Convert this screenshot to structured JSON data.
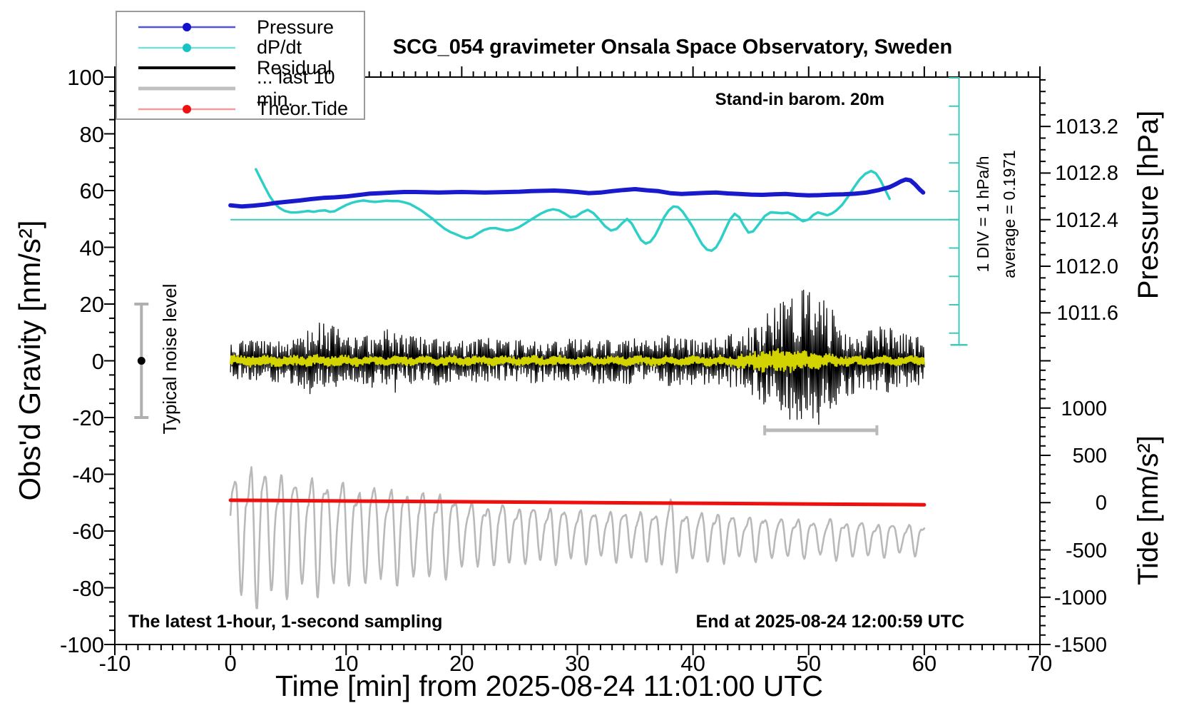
{
  "title": "SCG_054 gravimeter Onsala Space Observatory, Sweden",
  "annotations": {
    "barometer": "Stand-in barom. 20m",
    "div_scale": "1 DIV = 1 hPa/h",
    "average": "average = 0.1971",
    "noise": "Typical noise level",
    "sampling": "The latest 1-hour, 1-second sampling",
    "end_time": "End at 2025-08-24 12:00:59 UTC"
  },
  "legend": {
    "items": [
      {
        "label": "Pressure",
        "line_color": "#5353de",
        "line_width": 2.5,
        "dot": "#1212cc"
      },
      {
        "label": "dP/dt",
        "line_color": "#7adcdc",
        "line_width": 2.5,
        "dot": "#17c3c3"
      },
      {
        "label": "Residual",
        "line_color": "#000000",
        "line_width": 4,
        "dot": null
      },
      {
        "label": "... last 10 min.",
        "line_color": "#c0c0c0",
        "line_width": 5,
        "dot": null
      },
      {
        "label": "Theor.Tide",
        "line_color": "#f29999",
        "line_width": 2.5,
        "dot": "#ee1111"
      }
    ]
  },
  "chart_data": {
    "type": "line",
    "title": "SCG_054 gravimeter Onsala Space Observatory, Sweden",
    "axes": {
      "x": {
        "title": "Time [min] from 2025-08-24 11:01:00 UTC",
        "min": -10,
        "max": 70,
        "major_ticks": [
          -10,
          0,
          10,
          20,
          30,
          40,
          50,
          60,
          70
        ],
        "minor_step": 1
      },
      "y_left": {
        "title": "Obs'd Gravity [nm/s²]",
        "min": -100,
        "max": 100,
        "major_step": 20,
        "minor_step": 5,
        "major_ticks": [
          -100,
          -80,
          -60,
          -40,
          -20,
          0,
          20,
          40,
          60,
          80,
          100
        ]
      },
      "y_pressure": {
        "title": "Pressure [hPa]",
        "major_values": [
          1013.2,
          1012.8,
          1012.4,
          1012.0,
          1011.6
        ],
        "major_labels": [
          "1013.2",
          "1012.8",
          "1012.4",
          "1012.0",
          "1011.6"
        ],
        "minor_step": 0.1,
        "minor_range": [
          1011.3,
          1013.6
        ],
        "ref_value": 1012.4,
        "ref_gravity_units": 49.75,
        "units_per_hpa": 41.06
      },
      "y_tide": {
        "title": "Tide [nm/s²]",
        "major_values": [
          1000,
          500,
          0,
          -500,
          -1000,
          -1500
        ],
        "major_labels": [
          "1000",
          "500",
          "0",
          "-500",
          "-1000",
          "-1500"
        ],
        "minor_step": 100,
        "minor_range": [
          -1500,
          1500
        ],
        "tide_per_gravity_unit": 30,
        "zero_at_gravity_units": -50
      }
    },
    "series": {
      "pressure": {
        "name": "Pressure",
        "color": "#1a1acd",
        "width": 6,
        "units": "left-axis nm/s2 (1 hPa = 41.06 units, 1012.4 hPa = 49.75)",
        "points": [
          [
            0,
            54.8
          ],
          [
            1,
            54.4
          ],
          [
            2,
            54.7
          ],
          [
            3,
            55.1
          ],
          [
            4,
            55.7
          ],
          [
            5,
            56.1
          ],
          [
            6,
            56.5
          ],
          [
            7,
            57.0
          ],
          [
            8,
            57.4
          ],
          [
            9,
            57.6
          ],
          [
            10,
            57.9
          ],
          [
            11,
            58.4
          ],
          [
            12,
            58.9
          ],
          [
            13,
            59.1
          ],
          [
            14,
            59.3
          ],
          [
            15,
            59.5
          ],
          [
            16,
            59.5
          ],
          [
            17,
            59.4
          ],
          [
            18,
            59.3
          ],
          [
            19,
            59.4
          ],
          [
            20,
            59.5
          ],
          [
            21,
            59.4
          ],
          [
            22,
            59.3
          ],
          [
            23,
            59.4
          ],
          [
            24,
            59.5
          ],
          [
            25,
            59.6
          ],
          [
            26,
            59.8
          ],
          [
            27,
            59.9
          ],
          [
            28,
            60.0
          ],
          [
            29,
            59.8
          ],
          [
            30,
            59.5
          ],
          [
            31,
            59.1
          ],
          [
            32,
            59.3
          ],
          [
            33,
            59.8
          ],
          [
            34,
            60.2
          ],
          [
            35,
            60.5
          ],
          [
            36,
            60.1
          ],
          [
            37,
            59.8
          ],
          [
            38,
            59.1
          ],
          [
            39,
            58.8
          ],
          [
            40,
            59.0
          ],
          [
            41,
            59.2
          ],
          [
            42,
            59.3
          ],
          [
            43,
            59.0
          ],
          [
            44,
            58.8
          ],
          [
            45,
            58.6
          ],
          [
            46,
            58.5
          ],
          [
            47,
            58.7
          ],
          [
            48,
            58.8
          ],
          [
            49,
            58.5
          ],
          [
            50,
            58.3
          ],
          [
            51,
            58.4
          ],
          [
            52,
            58.6
          ],
          [
            53,
            58.7
          ],
          [
            54,
            58.9
          ],
          [
            55,
            59.3
          ],
          [
            56,
            60.1
          ],
          [
            57,
            61.2
          ],
          [
            57.5,
            62.2
          ],
          [
            58,
            63.3
          ],
          [
            58.4,
            63.9
          ],
          [
            58.8,
            63.6
          ],
          [
            59.2,
            62.2
          ],
          [
            59.6,
            60.4
          ],
          [
            59.9,
            59.3
          ]
        ]
      },
      "dpdt": {
        "name": "dP/dt",
        "color": "#2dcfc7",
        "width": 3.5,
        "zero_line_units": 49.75,
        "div_units": 10,
        "points": [
          [
            2.2,
            67.5
          ],
          [
            2.6,
            64.2
          ],
          [
            3,
            61
          ],
          [
            3.4,
            58
          ],
          [
            3.8,
            55.6
          ],
          [
            4.2,
            54
          ],
          [
            4.7,
            52.8
          ],
          [
            5.2,
            52.3
          ],
          [
            5.7,
            52.3
          ],
          [
            6.2,
            52.5
          ],
          [
            6.7,
            52.8
          ],
          [
            7.2,
            52.5
          ],
          [
            7.7,
            52.9
          ],
          [
            8.2,
            53
          ],
          [
            8.6,
            52.5
          ],
          [
            9,
            52.7
          ],
          [
            9.5,
            53.8
          ],
          [
            10,
            54.9
          ],
          [
            10.5,
            55.7
          ],
          [
            11,
            56.2
          ],
          [
            11.5,
            56.5
          ],
          [
            12,
            56.2
          ],
          [
            12.5,
            56
          ],
          [
            13,
            56.2
          ],
          [
            13.5,
            56.4
          ],
          [
            14,
            56.3
          ],
          [
            14.5,
            56.3
          ],
          [
            15,
            55.9
          ],
          [
            15.5,
            55.3
          ],
          [
            16,
            54.2
          ],
          [
            16.5,
            53
          ],
          [
            17,
            51.5
          ],
          [
            17.5,
            50
          ],
          [
            18,
            48.2
          ],
          [
            18.5,
            46.6
          ],
          [
            19,
            45.4
          ],
          [
            19.5,
            44.6
          ],
          [
            20,
            43.7
          ],
          [
            20.4,
            43.2
          ],
          [
            20.9,
            43.6
          ],
          [
            21.4,
            44.9
          ],
          [
            21.9,
            46.1
          ],
          [
            22.4,
            46.7
          ],
          [
            22.9,
            46.8
          ],
          [
            23.4,
            46.3
          ],
          [
            23.9,
            45.9
          ],
          [
            24.4,
            46.2
          ],
          [
            24.9,
            47
          ],
          [
            25.4,
            48.2
          ],
          [
            25.9,
            49.5
          ],
          [
            26.4,
            50.8
          ],
          [
            26.9,
            52
          ],
          [
            27.4,
            52.9
          ],
          [
            27.9,
            53.4
          ],
          [
            28.4,
            53
          ],
          [
            28.9,
            51.9
          ],
          [
            29.4,
            50.6
          ],
          [
            29.9,
            50.9
          ],
          [
            30.4,
            52.3
          ],
          [
            30.9,
            53.2
          ],
          [
            31.4,
            52
          ],
          [
            31.9,
            49.8
          ],
          [
            32.4,
            47.4
          ],
          [
            32.9,
            45.9
          ],
          [
            33.4,
            46.5
          ],
          [
            33.9,
            48.6
          ],
          [
            34.3,
            50
          ],
          [
            34.7,
            48.4
          ],
          [
            35.1,
            45.4
          ],
          [
            35.5,
            42.6
          ],
          [
            35.9,
            41.3
          ],
          [
            36.3,
            41.9
          ],
          [
            36.7,
            44
          ],
          [
            37.1,
            47.2
          ],
          [
            37.5,
            50.6
          ],
          [
            37.9,
            53
          ],
          [
            38.3,
            54.4
          ],
          [
            38.7,
            54.2
          ],
          [
            39.1,
            52.6
          ],
          [
            39.5,
            50.2
          ],
          [
            40,
            47
          ],
          [
            40.4,
            43.8
          ],
          [
            40.8,
            41
          ],
          [
            41.2,
            39.2
          ],
          [
            41.6,
            38.8
          ],
          [
            42,
            40
          ],
          [
            42.4,
            42.8
          ],
          [
            42.8,
            46.4
          ],
          [
            43.2,
            49.8
          ],
          [
            43.6,
            51.8
          ],
          [
            44,
            50.6
          ],
          [
            44.4,
            47.6
          ],
          [
            44.8,
            45.2
          ],
          [
            45.2,
            45.6
          ],
          [
            45.7,
            48.2
          ],
          [
            46.2,
            51
          ],
          [
            46.7,
            52.3
          ],
          [
            47.2,
            52.2
          ],
          [
            47.7,
            52
          ],
          [
            48.2,
            52.2
          ],
          [
            48.7,
            51.4
          ],
          [
            49.1,
            50.2
          ],
          [
            49.5,
            49.2
          ],
          [
            50,
            49.8
          ],
          [
            50.4,
            51.4
          ],
          [
            50.8,
            52.3
          ],
          [
            51.2,
            51.8
          ],
          [
            51.6,
            51.3
          ],
          [
            52,
            51.9
          ],
          [
            52.4,
            53
          ],
          [
            52.9,
            55
          ],
          [
            53.4,
            57.8
          ],
          [
            53.9,
            61
          ],
          [
            54.4,
            63.9
          ],
          [
            54.9,
            65.9
          ],
          [
            55.4,
            66.9
          ],
          [
            55.8,
            66.1
          ],
          [
            56.2,
            63.7
          ],
          [
            56.6,
            60.4
          ],
          [
            57,
            57.1
          ]
        ]
      },
      "dpdt_zero_line": {
        "color": "#3fc9bd",
        "y_units": 49.75,
        "x_from": 0,
        "x_to": 63.0
      },
      "residual": {
        "name": "Residual",
        "color": "#000000",
        "width": 1.2,
        "center_units": 0,
        "envelope_per_min": [
          6,
          7,
          7,
          7,
          7,
          8,
          9,
          12,
          13,
          12,
          9,
          8,
          9,
          10,
          12,
          9,
          8,
          8,
          8,
          7,
          7,
          7,
          8,
          7,
          7,
          7,
          8,
          7,
          7,
          8,
          7,
          7,
          8,
          7,
          8,
          8,
          7,
          8,
          9,
          8,
          8,
          8,
          8,
          9,
          10,
          12,
          15,
          18,
          21,
          24,
          25,
          22,
          17,
          13,
          11,
          10,
          12,
          11,
          9,
          9,
          8
        ]
      },
      "residual_smooth": {
        "name": "Residual smoothed",
        "color": "#d3d300",
        "width": 2.4,
        "center_units": 0,
        "envelope_per_min": [
          1.8,
          1.8,
          1.8,
          1.8,
          1.8,
          1.8,
          1.8,
          1.8,
          1.8,
          1.8,
          1.6,
          1.5,
          1.5,
          1.5,
          1.5,
          1.5,
          1.5,
          1.5,
          1.5,
          1.5,
          1.5,
          1.5,
          1.5,
          1.5,
          1.5,
          1.5,
          1.5,
          1.5,
          1.5,
          1.5,
          1.5,
          1.5,
          1.5,
          1.5,
          1.5,
          1.5,
          1.5,
          1.5,
          1.5,
          1.5,
          1.5,
          1.5,
          1.6,
          1.8,
          2.5,
          3,
          3.5,
          4,
          4,
          3.5,
          3,
          2.5,
          2,
          1.8,
          1.6,
          1.5,
          1.5,
          1.5,
          1.5,
          1.5,
          1.5
        ]
      },
      "residual_last10": {
        "name": "... last 10 min.",
        "color": "#b9b9b9",
        "width": 2.6,
        "center_start_units": -58,
        "center_end_units": -62.5,
        "period_min": 1.35,
        "amplitude_per_min": [
          18,
          22,
          24,
          22,
          20,
          20,
          19,
          19,
          20,
          18,
          17,
          16,
          17,
          16,
          15,
          16,
          15,
          14,
          15,
          13,
          12,
          10,
          10,
          11,
          10,
          9,
          10,
          9,
          9,
          9,
          8,
          9,
          8,
          8,
          9,
          8,
          8,
          9,
          13,
          9,
          8,
          8,
          9,
          8,
          7,
          7,
          8,
          7,
          6,
          7,
          6,
          6,
          7,
          6,
          6,
          6,
          5,
          6,
          5,
          5,
          5
        ]
      },
      "theor_tide": {
        "name": "Theor.Tide",
        "color": "#ee0f0f",
        "width": 5,
        "points": [
          [
            0,
            -49.15
          ],
          [
            60,
            -50.75
          ]
        ]
      }
    },
    "div_scale": {
      "x_min": 63.0,
      "top_units": 100,
      "bottom_units": 5.6,
      "tick_start_units": 9.75,
      "tick_step_units": 10,
      "color": "#3fc9bd",
      "label": "1 DIV = 1 hPa/h",
      "average_label": "average = 0.1971"
    },
    "noise_bar": {
      "x_min": -7.7,
      "center_units": 0,
      "half_height_units": 20,
      "color": "#b0b0b0",
      "dot_color": "#000000",
      "label": "Typical noise level"
    },
    "scalebar": {
      "y_units": -24.5,
      "x_from": 46.2,
      "x_to": 55.9,
      "color": "#b9b9b9"
    }
  }
}
